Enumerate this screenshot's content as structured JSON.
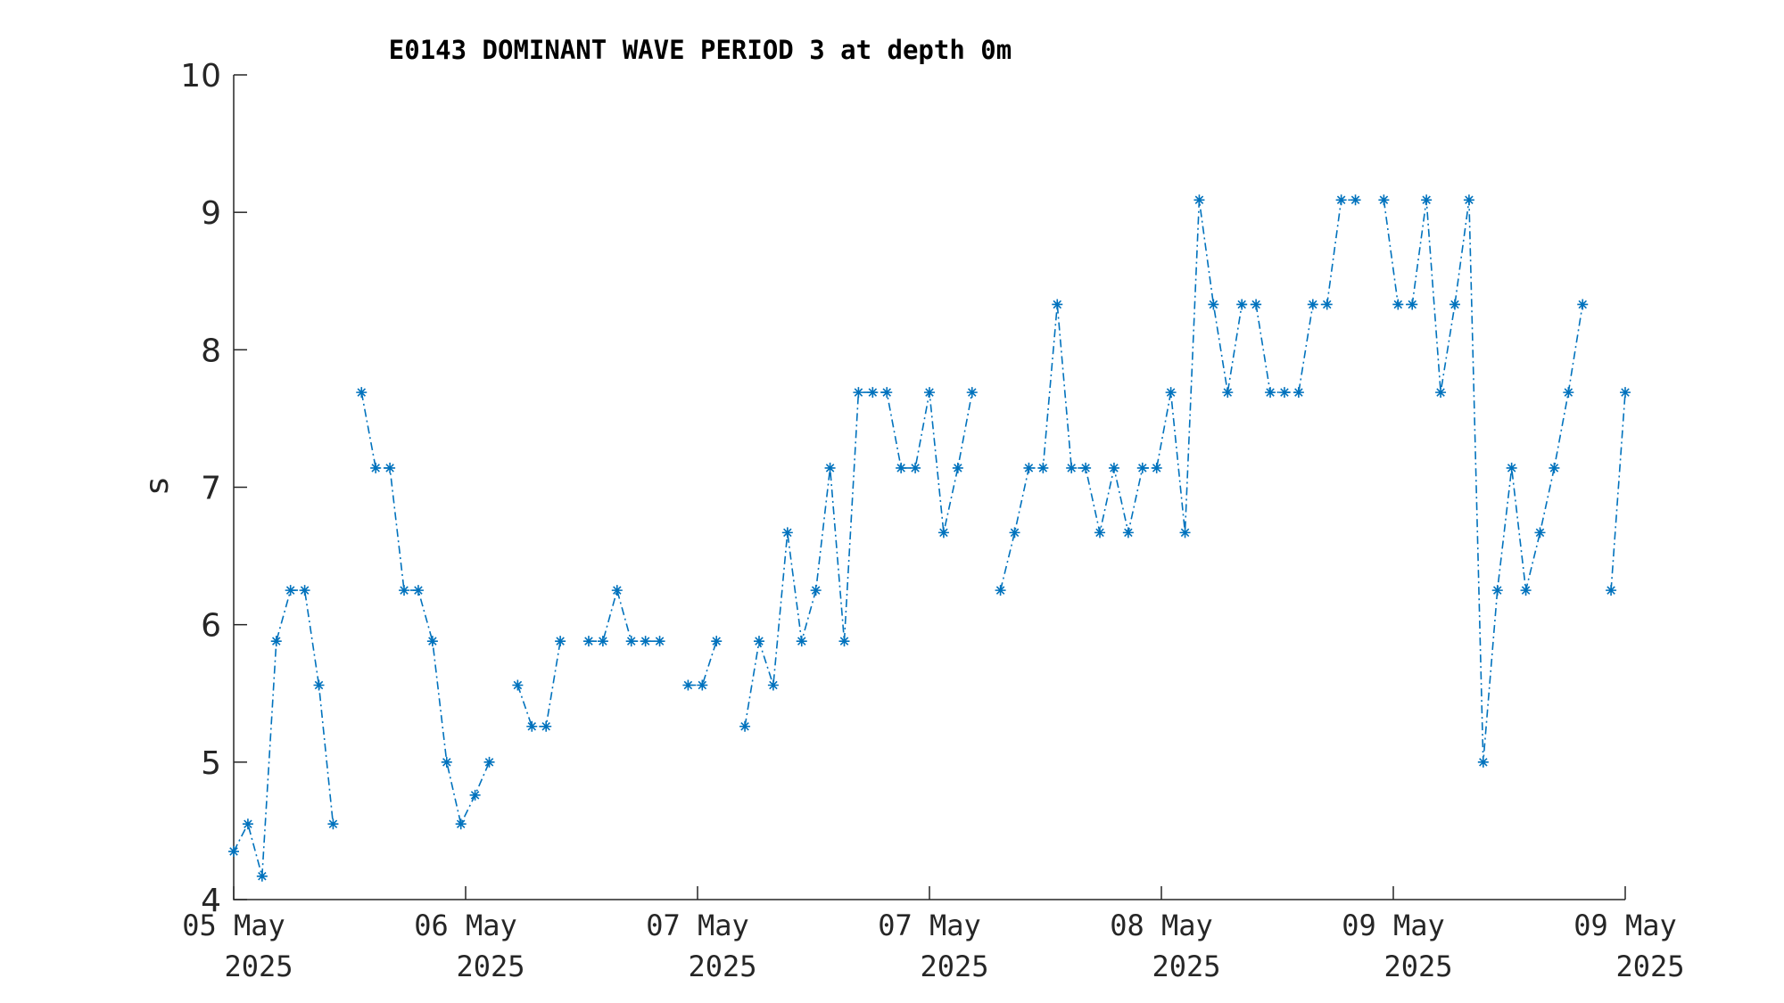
{
  "chart_data": {
    "type": "line",
    "title": "E0143 DOMINANT WAVE PERIOD 3 at depth 0m",
    "xlabel": "",
    "ylabel": "s",
    "ylim": [
      4,
      10
    ],
    "yticks": [
      "4",
      "5",
      "6",
      "7",
      "8",
      "9",
      "10"
    ],
    "xticks": [
      {
        "line1": "05 May",
        "line2": "2025"
      },
      {
        "line1": "06 May",
        "line2": "2025"
      },
      {
        "line1": "07 May",
        "line2": "2025"
      },
      {
        "line1": "07 May",
        "line2": "2025"
      },
      {
        "line1": "08 May",
        "line2": "2025"
      },
      {
        "line1": "09 May",
        "line2": "2025"
      },
      {
        "line1": "09 May",
        "line2": "2025"
      }
    ],
    "grid": false,
    "marker": "asterisk",
    "line_style": "dash-dot",
    "colors": {
      "series": "#0072BD",
      "axis": "#262626"
    },
    "series": [
      {
        "values": [
          4.35,
          4.55,
          4.17,
          5.88,
          6.25,
          6.25,
          5.56,
          4.55,
          null,
          7.69,
          7.14,
          7.14,
          6.25,
          6.25,
          5.88,
          5.0,
          4.55,
          4.76,
          5.0,
          null,
          5.56,
          5.26,
          5.26,
          5.88,
          null,
          5.88,
          5.88,
          6.25,
          5.88,
          5.88,
          5.88,
          null,
          5.56,
          5.56,
          5.88,
          null,
          5.26,
          5.88,
          5.56,
          6.67,
          5.88,
          6.25,
          7.14,
          5.88,
          7.69,
          7.69,
          7.69,
          7.14,
          7.14,
          7.69,
          6.67,
          7.14,
          7.69,
          null,
          6.25,
          6.67,
          7.14,
          7.14,
          8.33,
          7.14,
          7.14,
          6.67,
          7.14,
          6.67,
          7.14,
          7.14,
          7.69,
          6.67,
          9.09,
          8.33,
          7.69,
          8.33,
          8.33,
          7.69,
          7.69,
          7.69,
          8.33,
          8.33,
          9.09,
          9.09,
          null,
          9.09,
          8.33,
          8.33,
          9.09,
          7.69,
          8.33,
          9.09,
          5.0,
          6.25,
          7.14,
          6.25,
          6.67,
          7.14,
          7.69,
          8.33,
          null,
          6.25,
          7.69
        ]
      }
    ]
  }
}
